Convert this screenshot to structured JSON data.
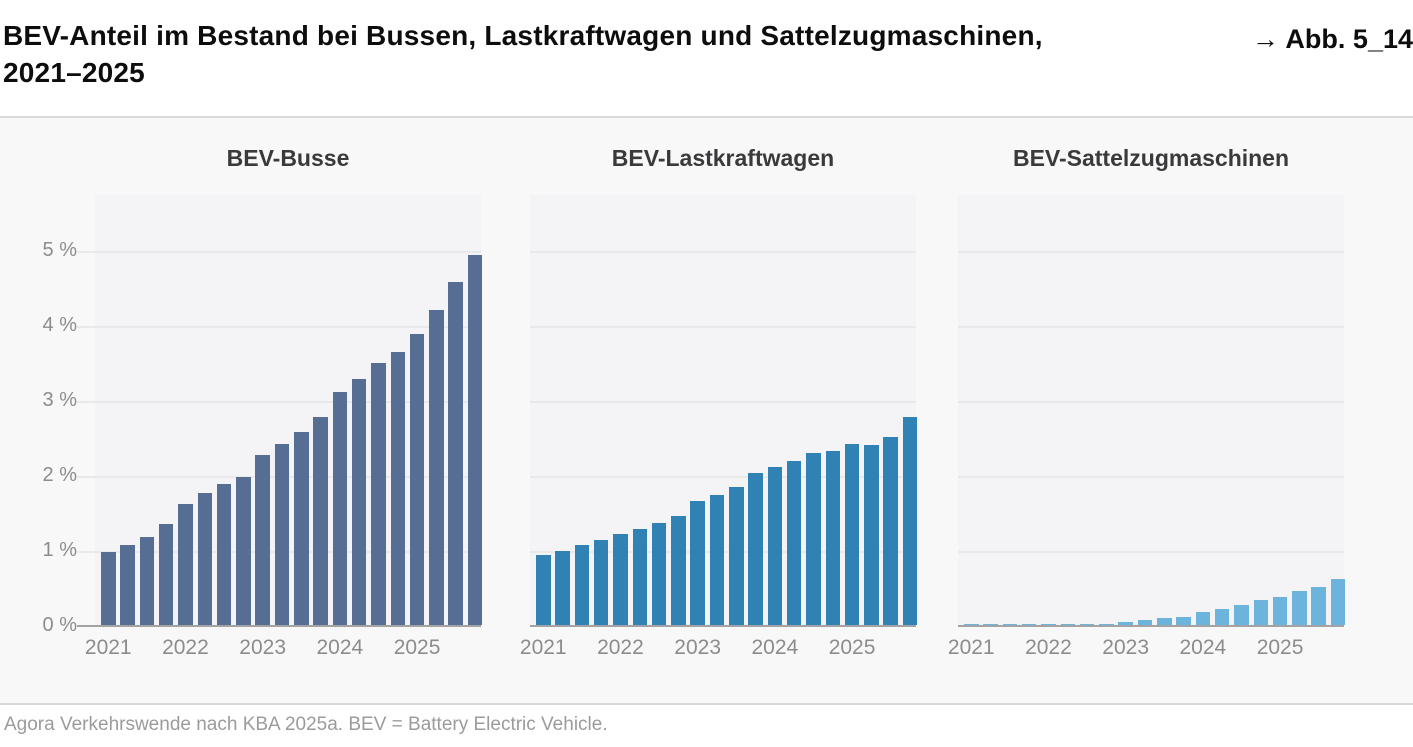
{
  "header": {
    "title_line1": "BEV-Anteil im Bestand bei Bussen, Lastkraftwagen und Sattelzugmaschinen,",
    "title_line2": "2021–2025",
    "figure_ref": "→ Abb. 5_14"
  },
  "footer": {
    "source": "Agora Verkehrswende nach KBA 2025a. BEV = Battery Electric Vehicle."
  },
  "colors": {
    "busse_bar": "#566d94",
    "lastkraftwagen_bar": "#3082b4",
    "sattelzugmaschinen_bar": "#6db4dc",
    "gridline": "#e9e9ea",
    "axis_line": "#a3a3a6",
    "tick_text": "#8c8c8e"
  },
  "axis": {
    "y_ticks": [
      "0 %",
      "1 %",
      "2 %",
      "3 %",
      "4 %",
      "5 %"
    ],
    "y_unit": "%"
  },
  "chart_data": [
    {
      "type": "bar",
      "title": "BEV-Busse",
      "color": "#566d94",
      "categories": [
        "2021",
        "2022",
        "2023",
        "2024",
        "2025"
      ],
      "bars_per_year": 4,
      "unit": "%",
      "ylim": [
        0,
        5.76
      ],
      "grid": true,
      "values": [
        0.97,
        1.07,
        1.17,
        1.35,
        1.61,
        1.76,
        1.88,
        1.98,
        2.27,
        2.42,
        2.58,
        2.77,
        3.11,
        3.28,
        3.5,
        3.64,
        3.88,
        4.2,
        4.58,
        4.93
      ]
    },
    {
      "type": "bar",
      "title": "BEV-Lastkraftwagen",
      "color": "#3082b4",
      "categories": [
        "2021",
        "2022",
        "2023",
        "2024",
        "2025"
      ],
      "bars_per_year": 4,
      "unit": "%",
      "ylim": [
        0,
        5.76
      ],
      "grid": true,
      "values": [
        0.94,
        0.99,
        1.07,
        1.13,
        1.22,
        1.28,
        1.36,
        1.45,
        1.65,
        1.73,
        1.84,
        2.03,
        2.11,
        2.19,
        2.29,
        2.32,
        2.41,
        2.4,
        2.51,
        2.77
      ]
    },
    {
      "type": "bar",
      "title": "BEV-Sattelzugmaschinen",
      "color": "#6db4dc",
      "categories": [
        "2021",
        "2022",
        "2023",
        "2024",
        "2025"
      ],
      "bars_per_year": 4,
      "unit": "%",
      "ylim": [
        0,
        5.76
      ],
      "grid": true,
      "values": [
        0.01,
        0.01,
        0.01,
        0.01,
        0.01,
        0.01,
        0.02,
        0.02,
        0.04,
        0.07,
        0.09,
        0.11,
        0.17,
        0.22,
        0.27,
        0.33,
        0.38,
        0.45,
        0.51,
        0.62
      ]
    }
  ]
}
